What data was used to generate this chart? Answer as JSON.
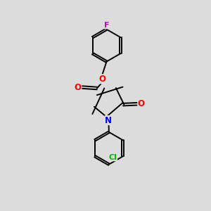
{
  "background_color": "#dcdcdc",
  "bond_color": "#000000",
  "atom_colors": {
    "F": "#cc00cc",
    "O": "#ff0000",
    "N": "#0000ff",
    "Cl": "#00bb00",
    "C": "#000000"
  },
  "lw": 1.4,
  "figsize": [
    3.0,
    3.0
  ],
  "dpi": 100
}
